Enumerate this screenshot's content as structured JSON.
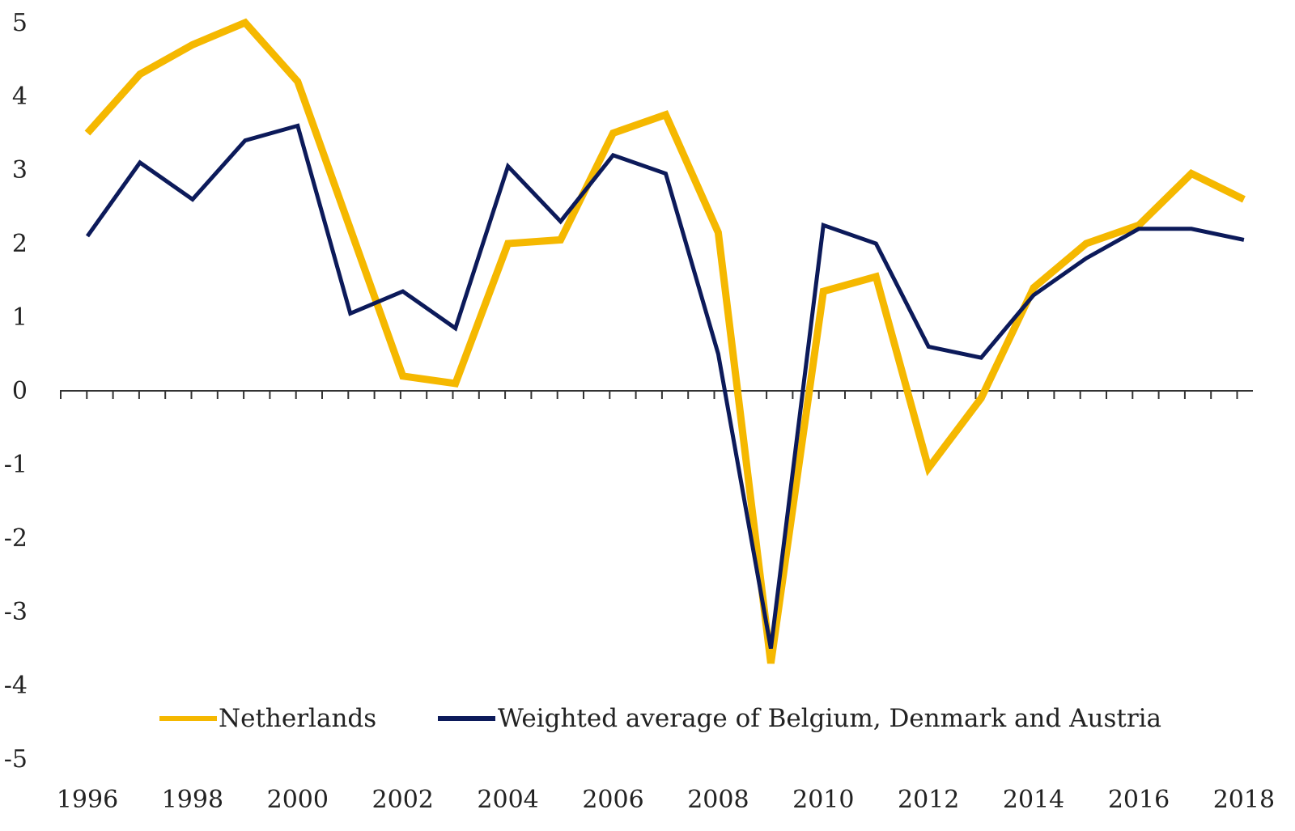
{
  "chart_data": {
    "type": "line",
    "title": "",
    "xlabel": "",
    "ylabel": "",
    "x": [
      1996,
      1997,
      1998,
      1999,
      2000,
      2001,
      2002,
      2003,
      2004,
      2005,
      2006,
      2007,
      2008,
      2009,
      2010,
      2011,
      2012,
      2013,
      2014,
      2015,
      2016,
      2017,
      2018
    ],
    "x_tick_labels": [
      "1996",
      "1998",
      "2000",
      "2002",
      "2004",
      "2006",
      "2008",
      "2010",
      "2012",
      "2014",
      "2016",
      "2018"
    ],
    "y_tick_labels": [
      "5",
      "4",
      "3",
      "2",
      "1",
      "0",
      "-1",
      "-2",
      "-3",
      "-4",
      "-5"
    ],
    "ylim": [
      -5,
      5
    ],
    "grid": false,
    "legend_position": "bottom",
    "series": [
      {
        "name": "Netherlands",
        "color": "#F5B800",
        "values": [
          3.5,
          4.3,
          4.7,
          5.0,
          4.2,
          2.2,
          0.2,
          0.1,
          2.0,
          2.05,
          3.5,
          3.75,
          2.15,
          -3.7,
          1.35,
          1.55,
          -1.05,
          -0.1,
          1.4,
          2.0,
          2.25,
          2.95,
          2.6
        ]
      },
      {
        "name": "Weighted average of Belgium, Denmark and Austria",
        "color": "#0C1A5A",
        "values": [
          2.1,
          3.1,
          2.6,
          3.4,
          3.6,
          1.05,
          1.35,
          0.85,
          3.05,
          2.3,
          3.2,
          2.95,
          0.5,
          -3.5,
          2.25,
          2.0,
          0.6,
          0.45,
          1.3,
          1.8,
          2.2,
          2.2,
          2.05
        ]
      }
    ]
  }
}
